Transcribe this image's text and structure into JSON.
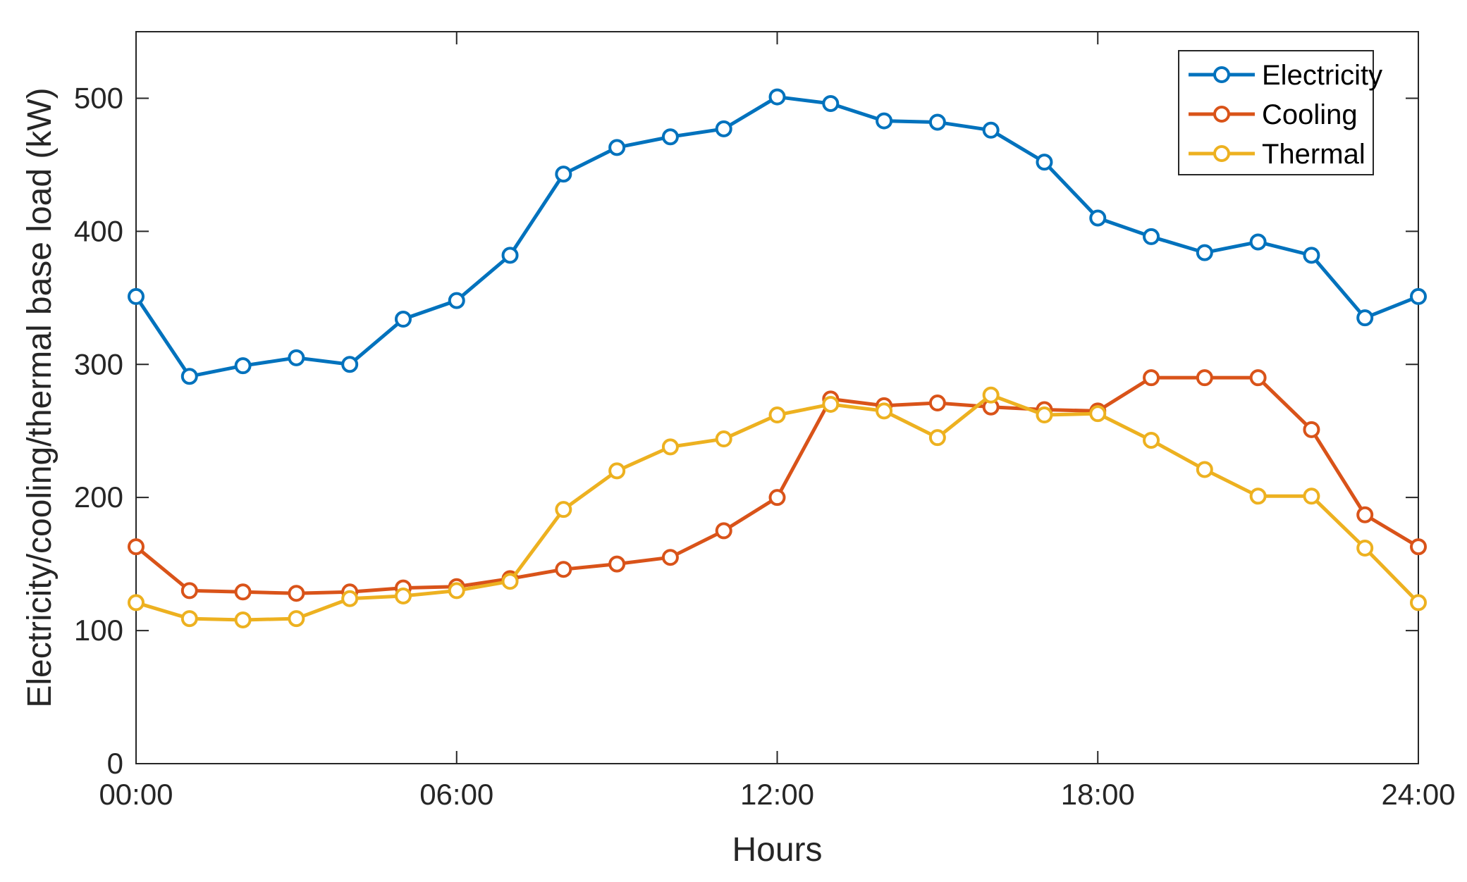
{
  "chart_data": {
    "type": "line",
    "title": "",
    "xlabel": "Hours",
    "ylabel": "Electricity/cooling/thermal base load (kW)",
    "x": [
      0,
      1,
      2,
      3,
      4,
      5,
      6,
      7,
      8,
      9,
      10,
      11,
      12,
      13,
      14,
      15,
      16,
      17,
      18,
      19,
      20,
      21,
      22,
      23,
      24
    ],
    "xlim": [
      0,
      24
    ],
    "ylim": [
      0,
      550
    ],
    "x_ticks": [
      0,
      6,
      12,
      18,
      24
    ],
    "x_tick_labels": [
      "00:00",
      "06:00",
      "12:00",
      "18:00",
      "24:00"
    ],
    "y_ticks": [
      0,
      100,
      200,
      300,
      400,
      500
    ],
    "y_tick_labels": [
      "0",
      "100",
      "200",
      "300",
      "400",
      "500"
    ],
    "grid": false,
    "box": true,
    "marker": "circle-open",
    "legend_position": "top-right",
    "series": [
      {
        "name": "Electricity",
        "color": "#0072BD",
        "values": [
          351,
          291,
          299,
          305,
          300,
          334,
          348,
          382,
          443,
          463,
          471,
          477,
          501,
          496,
          483,
          482,
          476,
          452,
          410,
          396,
          384,
          392,
          382,
          335,
          351
        ]
      },
      {
        "name": "Cooling",
        "color": "#D95319",
        "values": [
          163,
          130,
          129,
          128,
          129,
          132,
          133,
          139,
          146,
          150,
          155,
          175,
          200,
          274,
          269,
          271,
          268,
          266,
          265,
          290,
          290,
          290,
          251,
          187,
          163
        ]
      },
      {
        "name": "Thermal",
        "color": "#EDB120",
        "values": [
          121,
          109,
          108,
          109,
          124,
          126,
          130,
          137,
          191,
          220,
          238,
          244,
          262,
          270,
          265,
          245,
          277,
          262,
          263,
          243,
          221,
          201,
          201,
          162,
          121
        ]
      }
    ]
  }
}
